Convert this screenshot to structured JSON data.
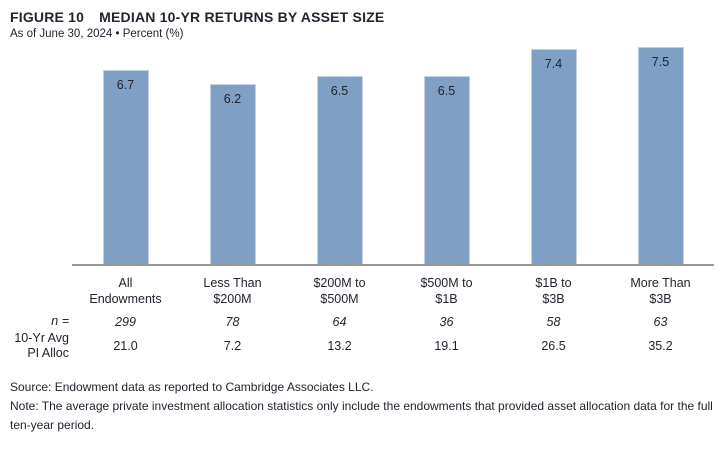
{
  "header": {
    "figure_label": "FIGURE 10",
    "title": "MEDIAN 10-YR RETURNS BY ASSET SIZE",
    "subtitle": "As of June 30, 2024 • Percent (%)"
  },
  "chart_data": {
    "type": "bar",
    "title": "MEDIAN 10-YR RETURNS BY ASSET SIZE",
    "subtitle": "As of June 30, 2024 • Percent (%)",
    "categories": [
      "All\nEndowments",
      "Less Than\n$200M",
      "$200M to\n$500M",
      "$500M to\n$1B",
      "$1B to\n$3B",
      "More Than\n$3B"
    ],
    "values": [
      6.7,
      6.2,
      6.5,
      6.5,
      7.4,
      7.5
    ],
    "value_labels": [
      "6.7",
      "6.2",
      "6.5",
      "6.5",
      "7.4",
      "7.5"
    ],
    "ylabel": "Percent (%)",
    "ylim": [
      0,
      7.6
    ],
    "grid": false,
    "legend": "none",
    "bar_color": "#7f9fc4",
    "table_rows": [
      {
        "label": "n =",
        "values": [
          "299",
          "78",
          "64",
          "36",
          "58",
          "63"
        ]
      },
      {
        "label": "10-Yr Avg\nPI Alloc",
        "values": [
          "21.0",
          "7.2",
          "13.2",
          "19.1",
          "26.5",
          "35.2"
        ]
      }
    ]
  },
  "notes": {
    "source": "Source: Endowment data as reported to Cambridge Associates LLC.",
    "note": "Note: The average private investment allocation statistics only include the endowments that provided asset allocation data for the full ten-year period."
  },
  "colors": {
    "text": "#20242e",
    "bar": "#7f9fc4",
    "bar_border": "#c3d0e2",
    "axis": "#999999"
  }
}
